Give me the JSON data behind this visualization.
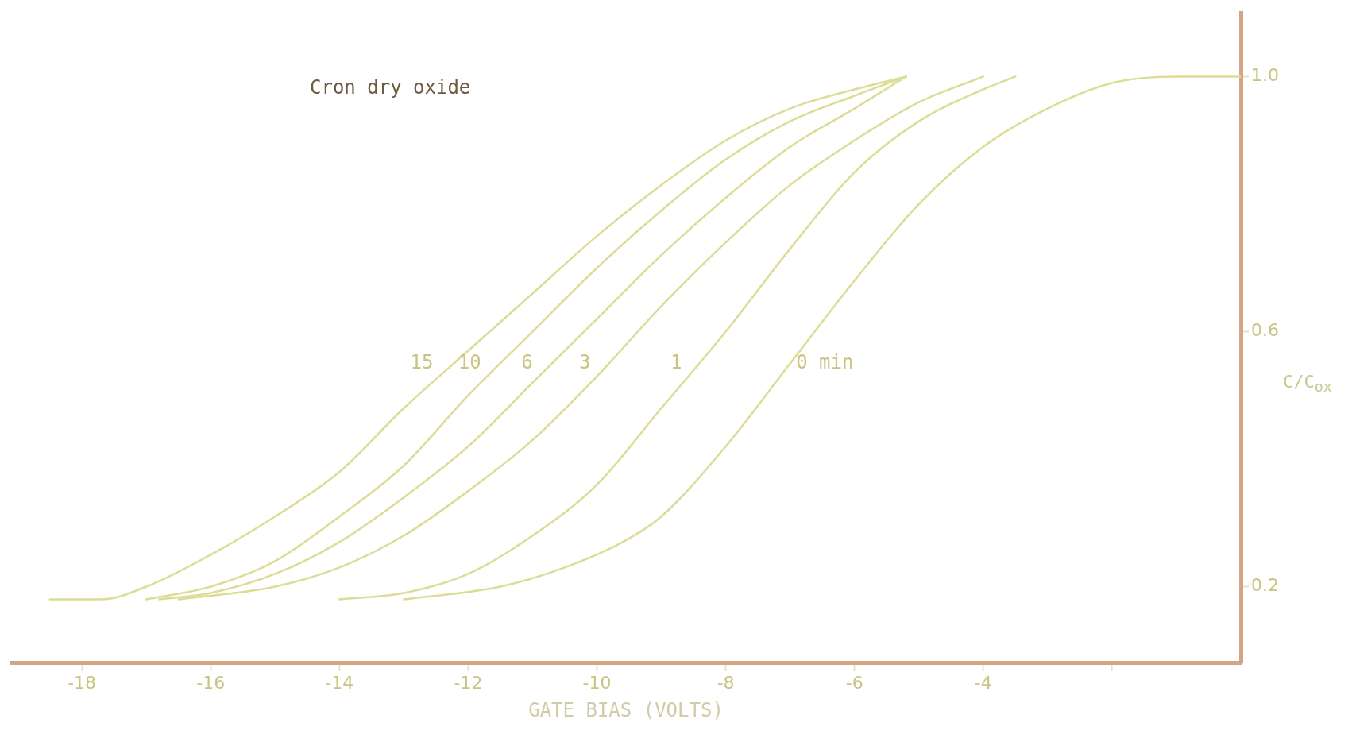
{
  "chart_data": {
    "type": "line",
    "xlabel": "GATE BIAS (VOLTS)",
    "ylabel": "C/C$_{ox}$",
    "annotations": [
      "Cron dry oxide"
    ],
    "xlim": [
      -19.1,
      0
    ],
    "xticks": [
      -18,
      -16,
      -14,
      -12,
      -10,
      -8,
      -6,
      -4,
      {
        "value": -2,
        "label": null
      }
    ],
    "ylim": [
      0.08,
      1.1
    ],
    "yticks": [
      {
        "value": 0.2,
        "label": "0.2"
      },
      {
        "value": 0.6,
        "label": "0.6"
      },
      {
        "value": 1,
        "label": "1.0"
      }
    ],
    "grid": false,
    "legend": false,
    "marker": "none",
    "line_style": "solid",
    "series": [
      {
        "name": "15",
        "color": "#dcdc96",
        "x": [
          -18.5,
          -17.7,
          -17,
          -16,
          -15,
          -14,
          -13,
          -12,
          -11,
          -10,
          -9,
          -8,
          -7,
          -6,
          -5.2
        ],
        "values": [
          0.18,
          0.18,
          0.2,
          0.25,
          0.31,
          0.38,
          0.48,
          0.57,
          0.66,
          0.75,
          0.83,
          0.9,
          0.95,
          0.98,
          1
        ]
      },
      {
        "name": "10",
        "color": "#dcdc96",
        "x": [
          -17,
          -16,
          -15,
          -14,
          -13,
          -12,
          -11,
          -10,
          -9,
          -8,
          -7,
          -6,
          -5.2
        ],
        "values": [
          0.18,
          0.2,
          0.24,
          0.31,
          0.39,
          0.5,
          0.6,
          0.7,
          0.79,
          0.87,
          0.93,
          0.97,
          1
        ]
      },
      {
        "name": "6",
        "color": "#dcdc96",
        "x": [
          -16.8,
          -16,
          -15,
          -14,
          -13,
          -12,
          -11,
          -10,
          -9,
          -8,
          -7,
          -6,
          -5.2
        ],
        "values": [
          0.18,
          0.19,
          0.22,
          0.27,
          0.34,
          0.42,
          0.52,
          0.62,
          0.72,
          0.81,
          0.89,
          0.95,
          1
        ]
      },
      {
        "name": "3",
        "color": "#dcdc96",
        "x": [
          -16.5,
          -15,
          -14,
          -13,
          -12,
          -11,
          -10,
          -9,
          -8,
          -7,
          -6,
          -5,
          -4
        ],
        "values": [
          0.18,
          0.2,
          0.23,
          0.28,
          0.35,
          0.43,
          0.53,
          0.64,
          0.74,
          0.83,
          0.9,
          0.96,
          1
        ]
      },
      {
        "name": "1",
        "color": "#dcdc96",
        "x": [
          -14,
          -13,
          -12,
          -11,
          -10,
          -9,
          -8,
          -7,
          -6,
          -5,
          -4,
          -3.5
        ],
        "values": [
          0.18,
          0.19,
          0.22,
          0.28,
          0.36,
          0.48,
          0.6,
          0.73,
          0.85,
          0.93,
          0.98,
          1
        ]
      },
      {
        "name": "0 min",
        "color": "#dcdc96",
        "x": [
          -13,
          -11.5,
          -10.5,
          -9.6,
          -9,
          -8,
          -7,
          -6,
          -5,
          -4,
          -3,
          -2,
          -1,
          0
        ],
        "values": [
          0.18,
          0.2,
          0.23,
          0.27,
          0.31,
          0.42,
          0.55,
          0.68,
          0.8,
          0.89,
          0.95,
          0.99,
          1,
          1
        ]
      }
    ]
  }
}
